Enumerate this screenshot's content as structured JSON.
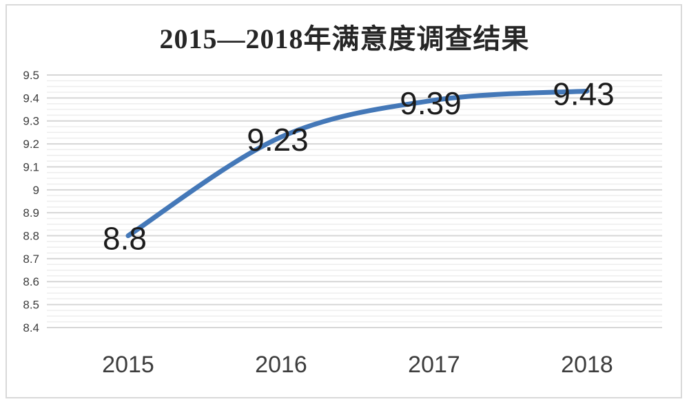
{
  "chart_data": {
    "type": "line",
    "title": "2015—2018年满意度调查结果",
    "categories": [
      "2015",
      "2016",
      "2017",
      "2018"
    ],
    "series": [
      {
        "values": [
          8.8,
          9.23,
          9.39,
          9.43
        ],
        "data_labels": [
          "8.8",
          "9.23",
          "9.39",
          "9.43"
        ]
      }
    ],
    "y_tick_labels": [
      "9.5",
      "9.4",
      "9.3",
      "9.2",
      "9.1",
      "9",
      "8.9",
      "8.8",
      "8.7",
      "8.6",
      "8.5",
      "8.4"
    ],
    "ylim": [
      8.4,
      9.5
    ],
    "y_major_step": 0.1,
    "y_minor_step": 0.025,
    "grid": true,
    "legend": false,
    "smooth_line": true,
    "colors": {
      "line": "#4478b8",
      "major_grid": "#d6d6d6",
      "minor_grid": "#ededed",
      "frame_border": "#d9d9d9",
      "title_text": "#262626",
      "axis_text": "#3d3d3d",
      "data_label_text": "#1c1c1c",
      "background": "#ffffff"
    }
  }
}
